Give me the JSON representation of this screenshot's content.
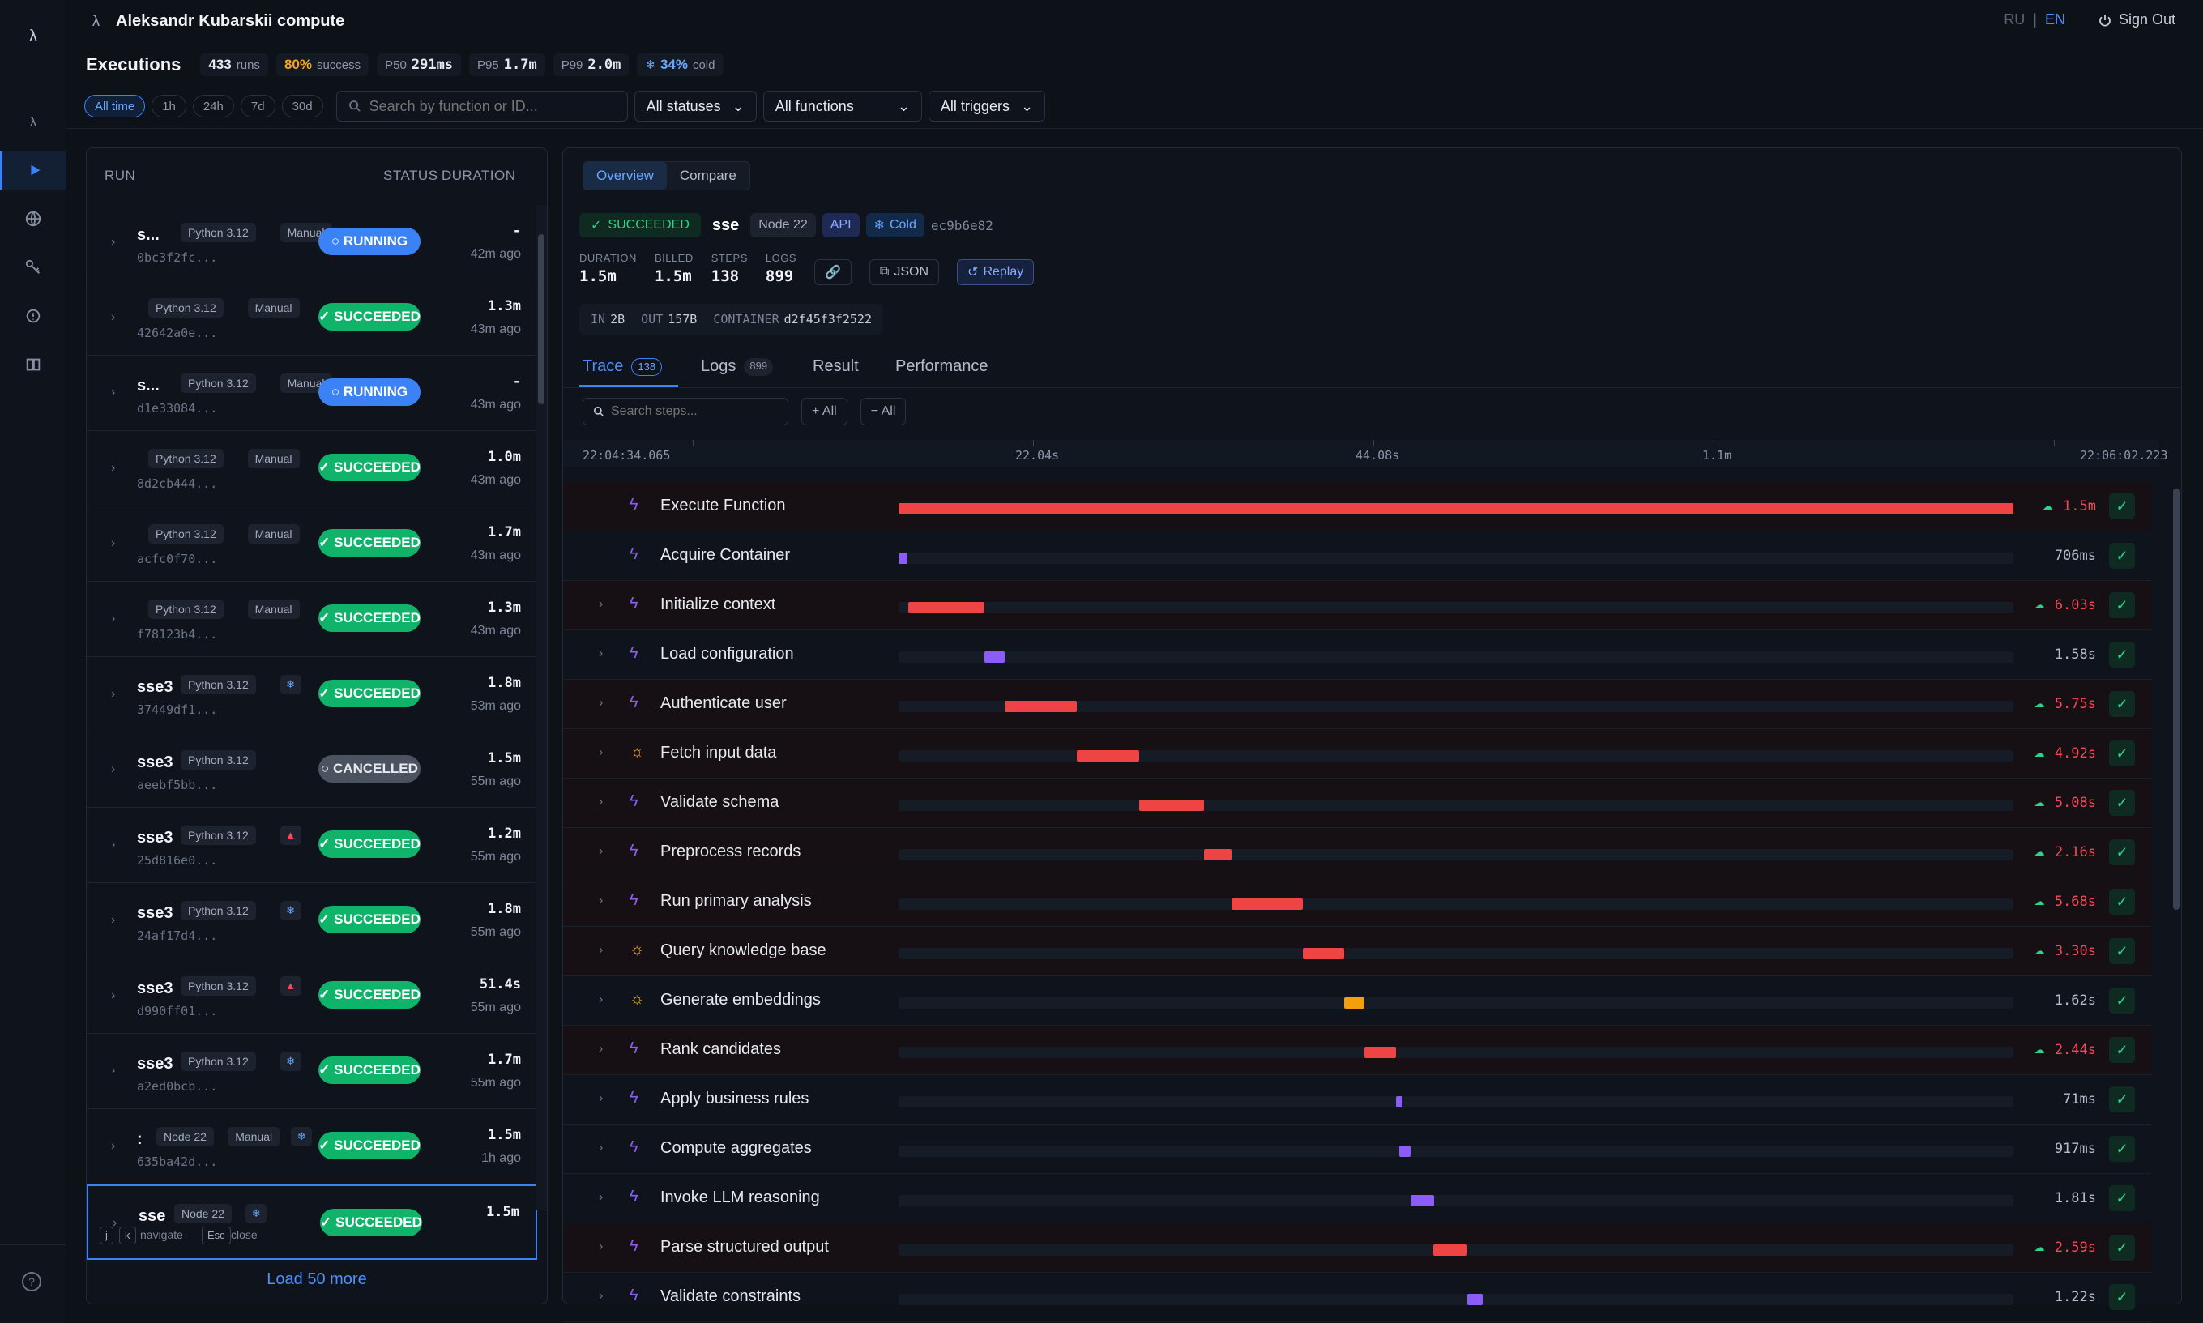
{
  "app": {
    "logo": "λ",
    "title": "Aleksandr Kubarskii compute"
  },
  "header": {
    "lang_ru": "RU",
    "lang_sep": "|",
    "lang_en": "EN",
    "sign_out": "Sign Out"
  },
  "stats": {
    "title": "Executions",
    "runs_value": "433",
    "runs_label": "runs",
    "success_value": "80%",
    "success_label": "success",
    "p50_label": "P50",
    "p50_value": "291ms",
    "p95_label": "P95",
    "p95_value": "1.7m",
    "p99_label": "P99",
    "p99_value": "2.0m",
    "cold_value": "34%",
    "cold_label": "cold"
  },
  "filters": {
    "ranges": [
      "All time",
      "1h",
      "24h",
      "7d",
      "30d"
    ],
    "search_placeholder": "Search by function or ID...",
    "status": "All statuses",
    "function": "All functions",
    "trigger": "All triggers"
  },
  "run_list": {
    "headers": {
      "run": "RUN",
      "status": "STATUS",
      "duration": "DURATION"
    },
    "rows": [
      {
        "name": "s...",
        "runtime": "Python 3.12",
        "trigger": "Manual",
        "hash": "0bc3f2fc...",
        "status": "RUNNING",
        "duration": "-",
        "ago": "42m ago"
      },
      {
        "name": "",
        "runtime": "Python 3.12",
        "trigger": "Manual",
        "hash": "42642a0e...",
        "status": "SUCCEEDED",
        "duration": "1.3m",
        "ago": "43m ago"
      },
      {
        "name": "s...",
        "runtime": "Python 3.12",
        "trigger": "Manual",
        "hash": "d1e33084...",
        "status": "RUNNING",
        "duration": "-",
        "ago": "43m ago"
      },
      {
        "name": "",
        "runtime": "Python 3.12",
        "trigger": "Manual",
        "hash": "8d2cb444...",
        "status": "SUCCEEDED",
        "duration": "1.0m",
        "ago": "43m ago"
      },
      {
        "name": "",
        "runtime": "Python 3.12",
        "trigger": "Manual",
        "hash": "acfc0f70...",
        "status": "SUCCEEDED",
        "duration": "1.7m",
        "ago": "43m ago"
      },
      {
        "name": "",
        "runtime": "Python 3.12",
        "trigger": "Manual",
        "hash": "f78123b4...",
        "status": "SUCCEEDED",
        "duration": "1.3m",
        "ago": "43m ago"
      },
      {
        "name": "sse3",
        "runtime": "Python 3.12",
        "trigger": "",
        "flag": "cold",
        "hash": "37449df1...",
        "status": "SUCCEEDED",
        "duration": "1.8m",
        "ago": "53m ago"
      },
      {
        "name": "sse3",
        "runtime": "Python 3.12",
        "trigger": "",
        "hash": "aeebf5bb...",
        "status": "CANCELLED",
        "duration": "1.5m",
        "ago": "55m ago"
      },
      {
        "name": "sse3",
        "runtime": "Python 3.12",
        "trigger": "",
        "flag": "warn",
        "hash": "25d816e0...",
        "status": "SUCCEEDED",
        "duration": "1.2m",
        "ago": "55m ago"
      },
      {
        "name": "sse3",
        "runtime": "Python 3.12",
        "trigger": "",
        "flag": "cold",
        "hash": "24af17d4...",
        "status": "SUCCEEDED",
        "duration": "1.8m",
        "ago": "55m ago"
      },
      {
        "name": "sse3",
        "runtime": "Python 3.12",
        "trigger": "",
        "flag": "warn",
        "hash": "d990ff01...",
        "status": "SUCCEEDED",
        "duration": "51.4s",
        "ago": "55m ago"
      },
      {
        "name": "sse3",
        "runtime": "Python 3.12",
        "trigger": "",
        "flag": "cold",
        "hash": "a2ed0bcb...",
        "status": "SUCCEEDED",
        "duration": "1.7m",
        "ago": "55m ago"
      },
      {
        "name": ":",
        "runtime": "Node 22",
        "trigger": "Manual",
        "flag": "cold",
        "hash": "635ba42d...",
        "status": "SUCCEEDED",
        "duration": "1.5m",
        "ago": "1h ago"
      },
      {
        "name": "sse",
        "runtime": "Node 22",
        "trigger": "",
        "flag": "cold",
        "hash": "",
        "status": "SUCCEEDED",
        "duration": "1.5m",
        "ago": "",
        "selected": true
      }
    ],
    "footer": {
      "key_j": "j",
      "key_k": "k",
      "navigate": "navigate",
      "key_esc": "Esc",
      "close": "close",
      "load_more": "Load 50 more"
    }
  },
  "detail": {
    "tabs": [
      "Overview",
      "Compare"
    ],
    "status": "SUCCEEDED",
    "function_name": "sse",
    "runtime": "Node 22",
    "trigger": "API",
    "cold": "Cold",
    "commit": "ec9b6e82",
    "duration_label": "DURATION",
    "duration": "1.5m",
    "billed_label": "BILLED",
    "billed": "1.5m",
    "steps_label": "STEPS",
    "steps": "138",
    "logs_label": "LOGS",
    "logs": "899",
    "json_btn": "JSON",
    "replay_btn": "Replay",
    "in_label": "IN",
    "in_value": "2B",
    "out_label": "OUT",
    "out_value": "157B",
    "container_label": "CONTAINER",
    "container_value": "d2f45f3f2522",
    "subtabs": {
      "trace": "Trace",
      "trace_count": "138",
      "logs": "Logs",
      "logs_count": "899",
      "result": "Result",
      "performance": "Performance"
    },
    "step_search_placeholder": "Search steps...",
    "expand_all": "+ All",
    "collapse_all": "− All",
    "timeline": {
      "start": "22:04:34.065",
      "t1": "22.04s",
      "t2": "44.08s",
      "t3": "1.1m",
      "end": "22:06:02.223"
    },
    "steps_list": [
      {
        "label": "Execute Function",
        "icon": "bolt",
        "start": 0.0,
        "width": 1.0,
        "duration": "1.5m",
        "slow": true,
        "color": "#ef4444",
        "expandable": false
      },
      {
        "label": "Acquire Container",
        "icon": "bolt",
        "start": 0.0,
        "width": 0.008,
        "duration": "706ms",
        "slow": false,
        "color": "#8b5cf6",
        "expandable": false
      },
      {
        "label": "Initialize context",
        "icon": "bolt",
        "start": 0.009,
        "width": 0.068,
        "duration": "6.03s",
        "slow": true,
        "color": "#ef4444",
        "expandable": true
      },
      {
        "label": "Load configuration",
        "icon": "bolt",
        "start": 0.077,
        "width": 0.018,
        "duration": "1.58s",
        "slow": false,
        "color": "#8b5cf6",
        "expandable": true
      },
      {
        "label": "Authenticate user",
        "icon": "bolt",
        "start": 0.095,
        "width": 0.065,
        "duration": "5.75s",
        "slow": true,
        "color": "#ef4444",
        "expandable": true
      },
      {
        "label": "Fetch input data",
        "icon": "sun",
        "start": 0.16,
        "width": 0.056,
        "duration": "4.92s",
        "slow": true,
        "color": "#ef4444",
        "expandable": true
      },
      {
        "label": "Validate schema",
        "icon": "bolt",
        "start": 0.216,
        "width": 0.058,
        "duration": "5.08s",
        "slow": true,
        "color": "#ef4444",
        "expandable": true
      },
      {
        "label": "Preprocess records",
        "icon": "bolt",
        "start": 0.274,
        "width": 0.025,
        "duration": "2.16s",
        "slow": true,
        "color": "#ef4444",
        "expandable": true
      },
      {
        "label": "Run primary analysis",
        "icon": "bolt",
        "start": 0.299,
        "width": 0.064,
        "duration": "5.68s",
        "slow": true,
        "color": "#ef4444",
        "expandable": true
      },
      {
        "label": "Query knowledge base",
        "icon": "sun",
        "start": 0.363,
        "width": 0.037,
        "duration": "3.30s",
        "slow": true,
        "color": "#ef4444",
        "expandable": true
      },
      {
        "label": "Generate embeddings",
        "icon": "sun",
        "start": 0.4,
        "width": 0.018,
        "duration": "1.62s",
        "slow": false,
        "color": "#f59e0b",
        "expandable": true
      },
      {
        "label": "Rank candidates",
        "icon": "bolt",
        "start": 0.418,
        "width": 0.028,
        "duration": "2.44s",
        "slow": true,
        "color": "#ef4444",
        "expandable": true
      },
      {
        "label": "Apply business rules",
        "icon": "bolt",
        "start": 0.446,
        "width": 0.004,
        "duration": "71ms",
        "slow": false,
        "color": "#8b5cf6",
        "expandable": true
      },
      {
        "label": "Compute aggregates",
        "icon": "bolt",
        "start": 0.449,
        "width": 0.01,
        "duration": "917ms",
        "slow": false,
        "color": "#8b5cf6",
        "expandable": true
      },
      {
        "label": "Invoke LLM reasoning",
        "icon": "bolt",
        "start": 0.459,
        "width": 0.021,
        "duration": "1.81s",
        "slow": false,
        "color": "#8b5cf6",
        "expandable": true
      },
      {
        "label": "Parse structured output",
        "icon": "bolt",
        "start": 0.48,
        "width": 0.03,
        "duration": "2.59s",
        "slow": true,
        "color": "#ef4444",
        "expandable": true
      },
      {
        "label": "Validate constraints",
        "icon": "bolt",
        "start": 0.51,
        "width": 0.014,
        "duration": "1.22s",
        "slow": false,
        "color": "#8b5cf6",
        "expandable": true
      }
    ]
  }
}
